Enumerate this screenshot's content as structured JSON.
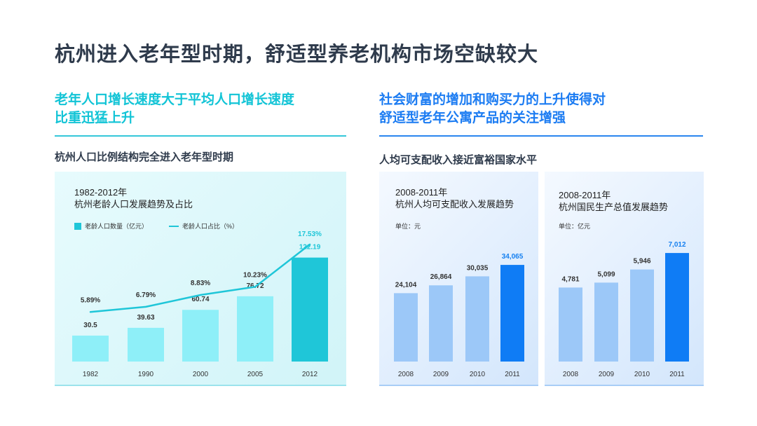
{
  "page": {
    "title": "杭州进入老年型时期，舒适型养老机构市场空缺较大"
  },
  "left_section": {
    "heading_line1": "老年人口增长速度大于平均人口增长速度",
    "heading_line2": "比重迅猛上升",
    "subheading": "杭州人口比例结构完全进入老年型时期",
    "panel_title_line1": "1982-2012年",
    "panel_title_line2": "杭州老龄人口发展趋势及占比",
    "legend_bar": "老龄人口数量（亿元）",
    "legend_line": "老龄人口占比（%）"
  },
  "right_section": {
    "heading_line1": "社会财富的增加和购买力的上升使得对",
    "heading_line2": "舒适型老年公寓产品的关注增强",
    "subheading": "人均可支配收入接近富裕国家水平",
    "panel_a_title_line1": "2008-2011年",
    "panel_a_title_line2": "杭州人均可支配收入发展趋势",
    "panel_a_unit": "单位：元",
    "panel_b_title_line1": "2008-2011年",
    "panel_b_title_line2": "杭州国民生产总值发展趋势",
    "panel_b_unit": "单位：亿元"
  },
  "colors": {
    "teal": "#1fc6d8",
    "teal_light": "#8eeff8",
    "blue": "#0f7cf5",
    "blue_light": "#9cc8f8",
    "blue_label": "#1680f0"
  },
  "chart_data": [
    {
      "type": "bar",
      "categories": [
        "1982",
        "1990",
        "2000",
        "2005",
        "2012"
      ],
      "series": [
        {
          "name": "老龄人口数量（亿元）",
          "type": "bar",
          "values": [
            30.5,
            39.63,
            60.74,
            76.72,
            122.19
          ]
        },
        {
          "name": "老龄人口占比（%）",
          "type": "line",
          "values": [
            5.89,
            6.79,
            8.83,
            10.23,
            17.53
          ]
        }
      ],
      "bar_labels": [
        "30.5",
        "39.63",
        "60.74",
        "76.72",
        "122.19"
      ],
      "line_labels": [
        "5.89%",
        "6.79%",
        "8.83%",
        "10.23%",
        "17.53%"
      ],
      "highlight_index": 4,
      "ylim": [
        0,
        140
      ]
    },
    {
      "type": "bar",
      "categories": [
        "2008",
        "2009",
        "2010",
        "2011"
      ],
      "values": [
        24104,
        26864,
        30035,
        34065
      ],
      "labels": [
        "24,104",
        "26,864",
        "30,035",
        "34,065"
      ],
      "highlight_index": 3,
      "ylim": [
        0,
        41000
      ]
    },
    {
      "type": "bar",
      "categories": [
        "2008",
        "2009",
        "2010",
        "2011"
      ],
      "values": [
        4781,
        5099,
        5946,
        7012
      ],
      "labels": [
        "4,781",
        "5,099",
        "5,946",
        "7,012"
      ],
      "highlight_index": 3,
      "ylim": [
        0,
        8600
      ]
    }
  ]
}
